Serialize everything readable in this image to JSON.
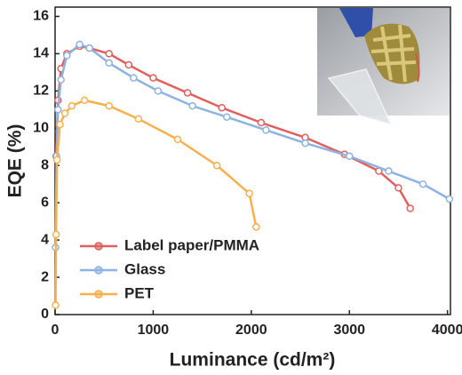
{
  "chart_data": {
    "type": "line",
    "xlabel": "Luminance (cd/m²)",
    "ylabel": "EQE (%)",
    "xlim": [
      0,
      4030
    ],
    "ylim": [
      0,
      16.5
    ],
    "xticks": [
      0,
      1000,
      2000,
      3000,
      4000
    ],
    "yticks": [
      0,
      2,
      4,
      6,
      8,
      10,
      12,
      14,
      16
    ],
    "legend": "lower left",
    "series": [
      {
        "name": "Label paper/PMMA",
        "color": "#e0605d",
        "x": [
          10,
          30,
          60,
          120,
          250,
          350,
          550,
          750,
          1000,
          1350,
          1700,
          2100,
          2550,
          2950,
          3300,
          3500,
          3620
        ],
        "values": [
          8.5,
          11.5,
          13.2,
          14.0,
          14.4,
          14.3,
          14.0,
          13.4,
          12.7,
          11.9,
          11.1,
          10.3,
          9.5,
          8.6,
          7.7,
          6.8,
          5.7
        ]
      },
      {
        "name": "Glass",
        "color": "#8db3e2",
        "x": [
          5,
          15,
          30,
          60,
          120,
          250,
          350,
          550,
          800,
          1050,
          1400,
          1750,
          2150,
          2550,
          3000,
          3400,
          3750,
          4020
        ],
        "values": [
          3.6,
          8.5,
          11.0,
          12.6,
          13.9,
          14.5,
          14.3,
          13.5,
          12.7,
          12.0,
          11.2,
          10.6,
          9.9,
          9.2,
          8.5,
          7.7,
          7.0,
          6.2
        ]
      },
      {
        "name": "PET",
        "color": "#f7b04c",
        "x": [
          5,
          10,
          20,
          50,
          100,
          170,
          300,
          550,
          850,
          1250,
          1650,
          1980,
          2050
        ],
        "values": [
          0.5,
          4.3,
          8.3,
          10.2,
          10.8,
          11.2,
          11.5,
          11.2,
          10.5,
          9.4,
          8.0,
          6.5,
          4.7
        ]
      }
    ]
  }
}
